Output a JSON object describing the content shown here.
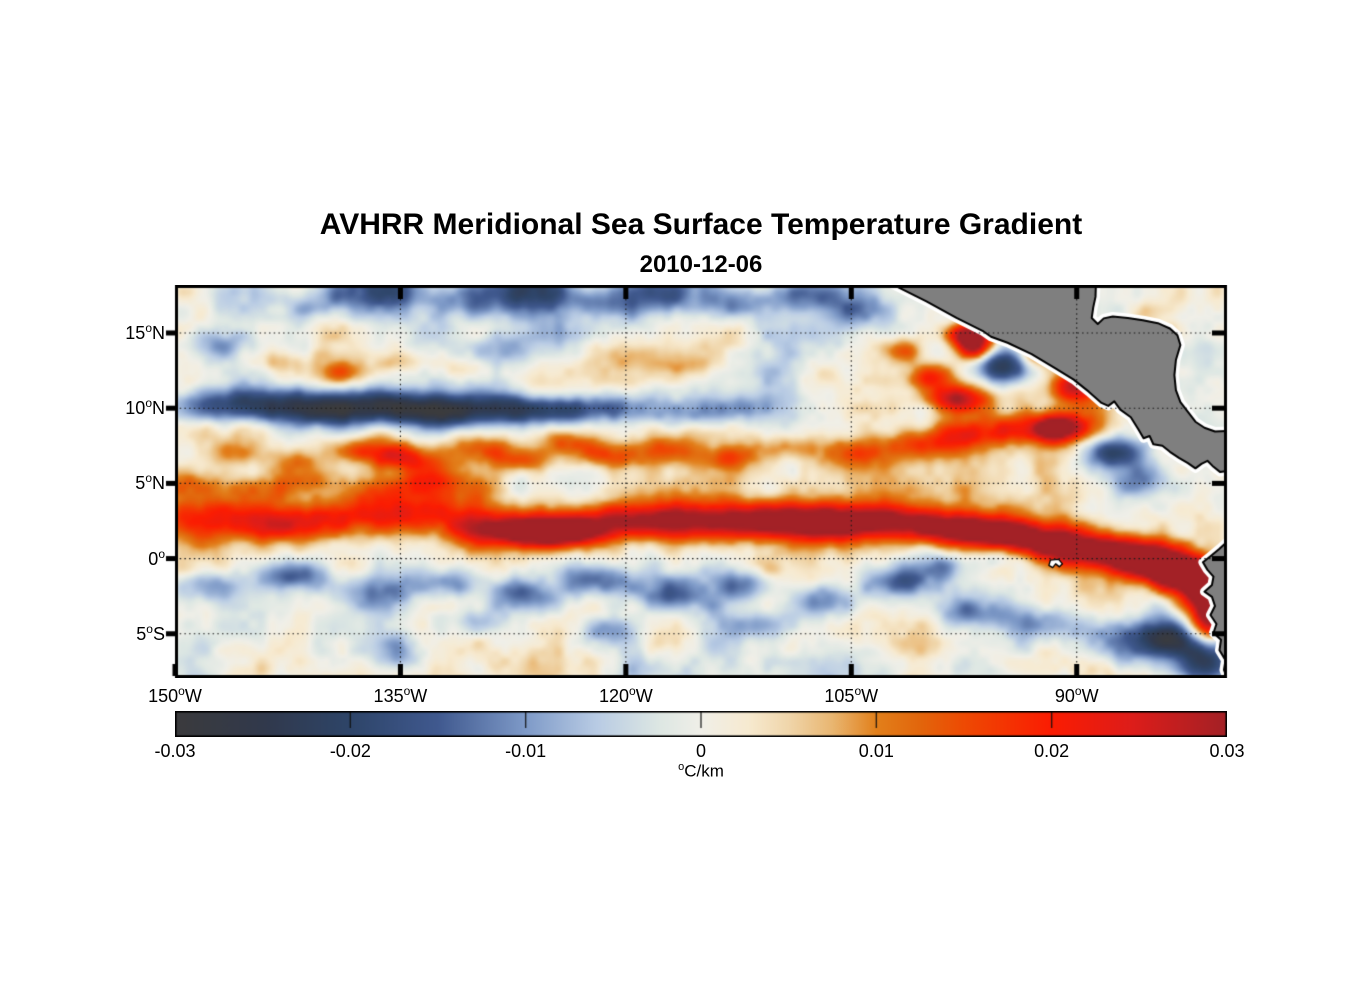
{
  "title": "AVHRR Meridional Sea Surface Temperature Gradient",
  "subtitle": "2010-12-06",
  "chart_data": {
    "type": "heatmap",
    "title": "AVHRR Meridional Sea Surface Temperature Gradient",
    "date": "2010-12-06",
    "x": {
      "range_lon": [
        -150,
        -80
      ],
      "ticks": [
        {
          "v": "150",
          "sup": "o",
          "h": "W",
          "lon": -150
        },
        {
          "v": "135",
          "sup": "o",
          "h": "W",
          "lon": -135
        },
        {
          "v": "120",
          "sup": "o",
          "h": "W",
          "lon": -120
        },
        {
          "v": "105",
          "sup": "o",
          "h": "W",
          "lon": -105
        },
        {
          "v": "90",
          "sup": "o",
          "h": "W",
          "lon": -90
        }
      ]
    },
    "y": {
      "range_lat": [
        -7.94,
        18.19
      ],
      "ticks": [
        {
          "v": "15",
          "sup": "o",
          "h": "N",
          "lat": 15
        },
        {
          "v": "10",
          "sup": "o",
          "h": "N",
          "lat": 10
        },
        {
          "v": "5",
          "sup": "o",
          "h": "N",
          "lat": 5
        },
        {
          "v": "0",
          "sup": "o",
          "h": "",
          "lat": 0
        },
        {
          "v": "5",
          "sup": "o",
          "h": "S",
          "lat": -5
        }
      ]
    },
    "grid": {
      "lats": [
        15,
        10,
        5,
        0,
        -5
      ],
      "lons": [
        -150,
        -135,
        -120,
        -105,
        -90
      ],
      "style": "dotted",
      "color": "#1a1a1a"
    },
    "colorbar": {
      "range": [
        -0.03,
        0.03
      ],
      "ticks": [
        {
          "label": "-0.03",
          "value": -0.03
        },
        {
          "label": "-0.02",
          "value": -0.02
        },
        {
          "label": "-0.01",
          "value": -0.01
        },
        {
          "label": "0",
          "value": 0
        },
        {
          "label": "0.01",
          "value": 0.01
        },
        {
          "label": "0.02",
          "value": 0.02
        },
        {
          "label": "0.03",
          "value": 0.03
        }
      ],
      "unit_sup": "o",
      "unit_text": "C/km"
    },
    "colormap_stops": [
      [
        0.0,
        "#3b3b3d"
      ],
      [
        0.085,
        "#31394c"
      ],
      [
        0.167,
        "#2e4569"
      ],
      [
        0.25,
        "#40598f"
      ],
      [
        0.333,
        "#7e9ac8"
      ],
      [
        0.4,
        "#b8cbe4"
      ],
      [
        0.46,
        "#dde7e3"
      ],
      [
        0.5,
        "#f0efe8"
      ],
      [
        0.545,
        "#f7ead0"
      ],
      [
        0.583,
        "#f0d6ab"
      ],
      [
        0.625,
        "#e9b671"
      ],
      [
        0.667,
        "#e2801b"
      ],
      [
        0.708,
        "#e2660c"
      ],
      [
        0.75,
        "#ee4a03"
      ],
      [
        0.833,
        "#fb1c02"
      ],
      [
        0.91,
        "#dd1d1a"
      ],
      [
        1.0,
        "#a32126"
      ]
    ],
    "land": {
      "fill": "#7f7f7f",
      "coast": "#000000",
      "nodata_halo": "#ffffff",
      "polygons": {
        "central_america": [
          [
            -102.4,
            18.3
          ],
          [
            -100.0,
            17.1
          ],
          [
            -98.0,
            16.0
          ],
          [
            -96.2,
            15.1
          ],
          [
            -95.7,
            14.75
          ],
          [
            -94.6,
            14.35
          ],
          [
            -93.0,
            13.6
          ],
          [
            -91.5,
            12.7
          ],
          [
            -90.2,
            11.9
          ],
          [
            -89.2,
            11.1
          ],
          [
            -88.35,
            10.35
          ],
          [
            -87.9,
            10.15
          ],
          [
            -87.5,
            10.45
          ],
          [
            -87.1,
            9.9
          ],
          [
            -86.4,
            9.4
          ],
          [
            -85.9,
            8.6
          ],
          [
            -85.55,
            8.0
          ],
          [
            -85.15,
            8.15
          ],
          [
            -84.9,
            7.6
          ],
          [
            -84.3,
            7.5
          ],
          [
            -83.8,
            7.1
          ],
          [
            -83.2,
            6.7
          ],
          [
            -82.6,
            6.35
          ],
          [
            -82.1,
            6.0
          ],
          [
            -81.7,
            6.3
          ],
          [
            -81.3,
            6.5
          ],
          [
            -80.9,
            6.1
          ],
          [
            -80.45,
            5.75
          ],
          [
            -79.6,
            5.9
          ],
          [
            -79.6,
            8.5
          ],
          [
            -80.8,
            8.45
          ],
          [
            -81.5,
            8.7
          ],
          [
            -82.1,
            9.1
          ],
          [
            -82.6,
            9.75
          ],
          [
            -83.1,
            10.4
          ],
          [
            -83.4,
            11.2
          ],
          [
            -83.5,
            12.2
          ],
          [
            -83.4,
            13.2
          ],
          [
            -83.1,
            14.2
          ],
          [
            -83.3,
            14.85
          ],
          [
            -83.8,
            15.3
          ],
          [
            -84.6,
            15.65
          ],
          [
            -85.6,
            15.85
          ],
          [
            -86.6,
            16.0
          ],
          [
            -87.6,
            16.1
          ],
          [
            -88.2,
            15.97
          ],
          [
            -88.6,
            15.6
          ],
          [
            -89.0,
            16.0
          ],
          [
            -88.9,
            16.7
          ],
          [
            -88.75,
            17.4
          ],
          [
            -88.7,
            19.0
          ],
          [
            -102.4,
            19.0
          ]
        ],
        "south_america": [
          [
            -79.9,
            1.2
          ],
          [
            -80.5,
            0.65
          ],
          [
            -81.1,
            0.15
          ],
          [
            -81.6,
            -0.25
          ],
          [
            -81.3,
            -0.75
          ],
          [
            -80.9,
            -1.2
          ],
          [
            -81.0,
            -1.75
          ],
          [
            -81.5,
            -2.2
          ],
          [
            -81.0,
            -2.55
          ],
          [
            -80.8,
            -3.15
          ],
          [
            -81.1,
            -3.75
          ],
          [
            -80.7,
            -4.35
          ],
          [
            -80.9,
            -4.95
          ],
          [
            -80.4,
            -5.4
          ],
          [
            -80.5,
            -6.1
          ],
          [
            -80.1,
            -6.75
          ],
          [
            -80.2,
            -7.4
          ],
          [
            -79.9,
            -8.2
          ],
          [
            -79.0,
            -8.2
          ],
          [
            -79.0,
            1.2
          ]
        ],
        "galapagos": [
          [
            -91.75,
            -0.1
          ],
          [
            -91.2,
            -0.05
          ],
          [
            -90.95,
            -0.35
          ],
          [
            -91.15,
            -0.55
          ],
          [
            -91.4,
            -0.35
          ],
          [
            -91.6,
            -0.6
          ],
          [
            -91.85,
            -0.45
          ]
        ]
      }
    },
    "field_model": {
      "note": "sum-of-gaussian approximation of the plotted meridional SST gradient field; entries are [lon, lat, sigma_lon_deg, sigma_lat_deg, amplitude_degC_per_km]",
      "blobs": [
        [
          -148,
          2.8,
          3.2,
          1.0,
          0.013
        ],
        [
          -143,
          2.2,
          3.0,
          0.9,
          0.015
        ],
        [
          -138.5,
          2.7,
          2.8,
          0.9,
          0.014
        ],
        [
          -134,
          3.2,
          2.4,
          0.8,
          0.013
        ],
        [
          -130,
          2.1,
          2.8,
          0.8,
          0.016
        ],
        [
          -126.5,
          1.8,
          2.4,
          0.7,
          0.018
        ],
        [
          -124.5,
          1.7,
          2.0,
          0.6,
          0.024
        ],
        [
          -122,
          2.4,
          2.6,
          0.8,
          0.016
        ],
        [
          -118,
          2.8,
          2.4,
          0.8,
          0.017
        ],
        [
          -114,
          2.3,
          2.4,
          0.8,
          0.019
        ],
        [
          -110,
          2.7,
          2.4,
          0.8,
          0.021
        ],
        [
          -106.5,
          2.2,
          2.4,
          0.8,
          0.023
        ],
        [
          -103,
          2.7,
          2.2,
          0.8,
          0.021
        ],
        [
          -99.5,
          2.1,
          2.2,
          0.8,
          0.024
        ],
        [
          -96,
          1.7,
          2.2,
          0.8,
          0.026
        ],
        [
          -92.5,
          1.1,
          2.2,
          0.8,
          0.024
        ],
        [
          -89,
          0.6,
          2.2,
          0.8,
          0.025
        ],
        [
          -86,
          0.2,
          2.0,
          0.8,
          0.026
        ],
        [
          -84.5,
          -0.6,
          1.6,
          0.8,
          0.026
        ],
        [
          -83,
          -1.2,
          1.4,
          0.9,
          0.029
        ],
        [
          -81.4,
          -2.3,
          1.0,
          1.1,
          0.031
        ],
        [
          -81.2,
          -4.3,
          0.8,
          1.0,
          0.024
        ],
        [
          -149,
          5.0,
          1.8,
          0.7,
          0.012
        ],
        [
          -145,
          4.6,
          1.8,
          0.7,
          0.013
        ],
        [
          -141,
          5.2,
          1.8,
          0.7,
          0.012
        ],
        [
          -137,
          4.5,
          1.6,
          0.7,
          0.013
        ],
        [
          -133.5,
          5.1,
          1.8,
          0.7,
          0.011
        ],
        [
          -146,
          7.0,
          1.4,
          0.6,
          0.01
        ],
        [
          -142,
          6.4,
          1.4,
          0.6,
          0.011
        ],
        [
          -138,
          7.2,
          1.4,
          0.6,
          0.011
        ],
        [
          -135.5,
          6.8,
          1.2,
          0.6,
          0.014
        ],
        [
          -134,
          6.6,
          1.4,
          0.6,
          0.01
        ],
        [
          -130,
          7.4,
          1.6,
          0.6,
          0.013
        ],
        [
          -127,
          6.6,
          1.4,
          0.6,
          0.015
        ],
        [
          -124,
          7.6,
          1.4,
          0.6,
          0.011
        ],
        [
          -121,
          6.8,
          1.4,
          0.6,
          0.012
        ],
        [
          -117,
          7.2,
          1.6,
          0.6,
          0.011
        ],
        [
          -113,
          6.7,
          1.4,
          0.6,
          0.011
        ],
        [
          -109,
          7.4,
          1.6,
          0.6,
          0.01
        ],
        [
          -105,
          7.0,
          1.6,
          0.7,
          0.013
        ],
        [
          -101,
          7.6,
          1.6,
          0.7,
          0.015
        ],
        [
          -97.5,
          8.2,
          1.6,
          0.7,
          0.015
        ],
        [
          -94,
          8.6,
          1.6,
          0.7,
          0.017
        ],
        [
          -90.5,
          8.8,
          1.3,
          0.7,
          0.019
        ],
        [
          -148,
          10.2,
          2.0,
          0.8,
          -0.013
        ],
        [
          -144,
          10.3,
          2.2,
          0.8,
          -0.016
        ],
        [
          -140,
          9.9,
          2.4,
          0.8,
          -0.021
        ],
        [
          -136,
          10.1,
          2.4,
          0.8,
          -0.022
        ],
        [
          -132,
          9.7,
          2.2,
          0.8,
          -0.018
        ],
        [
          -128,
          10.0,
          2.2,
          0.7,
          -0.016
        ],
        [
          -124.5,
          9.8,
          2.0,
          0.7,
          -0.016
        ],
        [
          -120.5,
          10.1,
          2.0,
          0.7,
          -0.014
        ],
        [
          -116.5,
          9.6,
          1.8,
          0.7,
          -0.011
        ],
        [
          -112.5,
          10.0,
          1.8,
          0.7,
          -0.009
        ],
        [
          -146,
          17.6,
          1.8,
          1.0,
          -0.013
        ],
        [
          -141,
          16.9,
          1.6,
          0.8,
          -0.008
        ],
        [
          -136,
          17.8,
          2.0,
          1.0,
          -0.015
        ],
        [
          -131,
          17.2,
          1.6,
          0.8,
          -0.011
        ],
        [
          -126,
          17.8,
          2.2,
          1.0,
          -0.018
        ],
        [
          -122,
          16.9,
          1.6,
          0.8,
          -0.013
        ],
        [
          -117.5,
          17.6,
          2.0,
          1.0,
          -0.017
        ],
        [
          -112.5,
          17.0,
          1.6,
          0.8,
          -0.011
        ],
        [
          -108,
          17.5,
          1.8,
          0.9,
          -0.015
        ],
        [
          -105,
          16.6,
          1.4,
          0.8,
          -0.01
        ],
        [
          -147,
          14.3,
          1.4,
          0.8,
          -0.011
        ],
        [
          -128,
          13.9,
          1.6,
          0.8,
          -0.011
        ],
        [
          -124.5,
          15.0,
          1.4,
          0.7,
          -0.009
        ],
        [
          -143,
          13.2,
          1.3,
          0.6,
          0.008
        ],
        [
          -139,
          12.4,
          1.3,
          0.6,
          0.009
        ],
        [
          -135,
          13.0,
          1.3,
          0.6,
          0.008
        ],
        [
          -131,
          12.6,
          1.3,
          0.6,
          0.008
        ],
        [
          -120,
          13.5,
          1.4,
          0.7,
          0.007
        ],
        [
          -116,
          12.8,
          1.3,
          0.6,
          0.008
        ],
        [
          -147,
          -1.8,
          1.8,
          0.8,
          -0.013
        ],
        [
          -142,
          -1.2,
          1.8,
          0.7,
          -0.015
        ],
        [
          -137,
          -2.2,
          1.8,
          0.8,
          -0.013
        ],
        [
          -132,
          -1.6,
          1.8,
          0.7,
          -0.012
        ],
        [
          -127,
          -2.4,
          1.8,
          0.8,
          -0.015
        ],
        [
          -122,
          -1.4,
          1.6,
          0.7,
          -0.013
        ],
        [
          -117,
          -2.6,
          1.6,
          0.8,
          -0.012
        ],
        [
          -112,
          -1.8,
          1.6,
          0.7,
          -0.013
        ],
        [
          -107,
          -2.8,
          1.6,
          0.8,
          -0.015
        ],
        [
          -102,
          -1.6,
          1.6,
          0.7,
          -0.013
        ],
        [
          -97,
          -3.6,
          1.8,
          0.9,
          -0.016
        ],
        [
          -92,
          -4.4,
          1.8,
          0.9,
          -0.015
        ],
        [
          -87,
          -5.6,
          1.8,
          1.0,
          -0.018
        ],
        [
          -83.8,
          -5.2,
          1.3,
          0.9,
          -0.024
        ],
        [
          -81.5,
          -6.8,
          1.3,
          1.1,
          -0.024
        ],
        [
          -130,
          -4.2,
          1.5,
          0.7,
          -0.011
        ],
        [
          -121,
          -4.8,
          1.5,
          0.7,
          -0.012
        ],
        [
          -111,
          -4.4,
          1.5,
          0.7,
          -0.009
        ],
        [
          -135,
          -6.3,
          1.5,
          0.8,
          -0.009
        ],
        [
          -99,
          -0.6,
          1.4,
          0.6,
          -0.011
        ],
        [
          -95,
          0.2,
          1.4,
          0.6,
          -0.011
        ],
        [
          -97.2,
          14.9,
          1.1,
          0.5,
          0.03
        ],
        [
          -96.8,
          14.0,
          0.9,
          0.6,
          0.032
        ],
        [
          -94.8,
          12.9,
          1.3,
          1.0,
          -0.03
        ],
        [
          -93.0,
          15.1,
          0.8,
          0.5,
          0.028
        ],
        [
          -92.4,
          13.6,
          1.0,
          0.6,
          0.02
        ],
        [
          -97.9,
          10.6,
          1.3,
          0.6,
          0.024
        ],
        [
          -99.8,
          12.1,
          1.1,
          0.6,
          0.017
        ],
        [
          -101.8,
          13.9,
          1.2,
          0.6,
          0.013
        ],
        [
          -90.2,
          11.4,
          1.2,
          0.8,
          0.028
        ],
        [
          -88.4,
          12.4,
          0.9,
          0.6,
          0.016
        ],
        [
          -91.6,
          8.6,
          0.9,
          0.6,
          0.022
        ],
        [
          -87.5,
          7.0,
          1.5,
          0.9,
          -0.022
        ],
        [
          -85.8,
          5.0,
          1.4,
          0.8,
          -0.014
        ],
        [
          -95.5,
          16.2,
          1.0,
          0.5,
          -0.012
        ],
        [
          -115,
          4.0,
          30,
          2.8,
          0.004
        ]
      ],
      "noise": [
        {
          "seed": 7,
          "step": 3.2,
          "amp": 0.0055
        },
        {
          "seed": 13,
          "step": 1.3,
          "amp": 0.0028
        },
        {
          "seed": 29,
          "step": 0.6,
          "amp": 0.0012
        }
      ]
    }
  }
}
